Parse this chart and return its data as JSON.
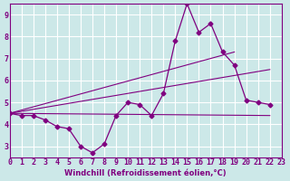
{
  "xlabel": "Windchill (Refroidissement éolien,°C)",
  "background_color": "#cce8e8",
  "grid_color": "#ffffff",
  "line_color": "#800080",
  "xlim": [
    0,
    23
  ],
  "ylim": [
    2.5,
    9.5
  ],
  "yticks": [
    3,
    4,
    5,
    6,
    7,
    8,
    9
  ],
  "xticks": [
    0,
    1,
    2,
    3,
    4,
    5,
    6,
    7,
    8,
    9,
    10,
    11,
    12,
    13,
    14,
    15,
    16,
    17,
    18,
    19,
    20,
    21,
    22,
    23
  ],
  "main_data_x": [
    0,
    1,
    2,
    3,
    4,
    5,
    6,
    7,
    8,
    9,
    10,
    11,
    12,
    13,
    14,
    15,
    16,
    17,
    18,
    19,
    20,
    21,
    22
  ],
  "main_data_y": [
    4.5,
    4.4,
    4.4,
    4.2,
    3.9,
    3.8,
    3.0,
    2.7,
    3.1,
    4.4,
    5.0,
    4.9,
    4.4,
    5.4,
    7.8,
    9.5,
    8.2,
    8.6,
    7.3,
    6.7,
    5.1,
    5.0,
    4.9
  ],
  "line1_x": [
    0,
    22
  ],
  "line1_y": [
    4.5,
    4.4
  ],
  "line2_x": [
    0,
    19
  ],
  "line2_y": [
    4.5,
    7.3
  ],
  "line3_x": [
    0,
    22
  ],
  "line3_y": [
    4.5,
    6.5
  ]
}
